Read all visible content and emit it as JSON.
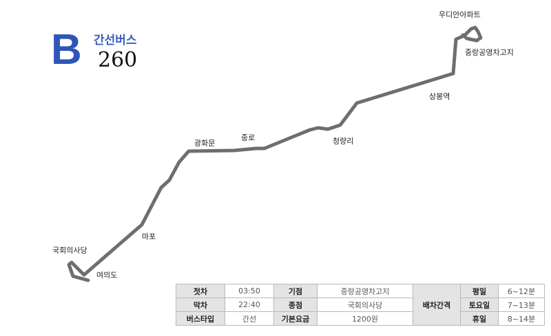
{
  "header": {
    "logo_letter": "B",
    "bus_type": "간선버스",
    "bus_number": "260"
  },
  "route": {
    "line_color": "#6e6e6e",
    "stops": {
      "udian": "우디안아파트",
      "jungnang_depot": "중랑공영차고지",
      "sangbong": "상봉역",
      "cheongnyangni": "청량리",
      "jongno": "종로",
      "gwanghwamun": "광화문",
      "mapo": "마포",
      "assembly": "국회의사당",
      "yeouido": "여의도"
    }
  },
  "info_table": {
    "first_bus_label": "첫차",
    "first_bus_value": "03:50",
    "last_bus_label": "막차",
    "last_bus_value": "22:40",
    "bus_type_label": "버스타입",
    "bus_type_value": "간선",
    "origin_label": "기점",
    "origin_value": "중랑공영차고지",
    "terminus_label": "종점",
    "terminus_value": "국회의사당",
    "fare_label": "기본요금",
    "fare_value": "1200원",
    "interval_label": "배차간격",
    "weekday_label": "평일",
    "weekday_value": "6~12분",
    "saturday_label": "토요일",
    "saturday_value": "7~13분",
    "holiday_label": "휴일",
    "holiday_value": "8~14분"
  }
}
